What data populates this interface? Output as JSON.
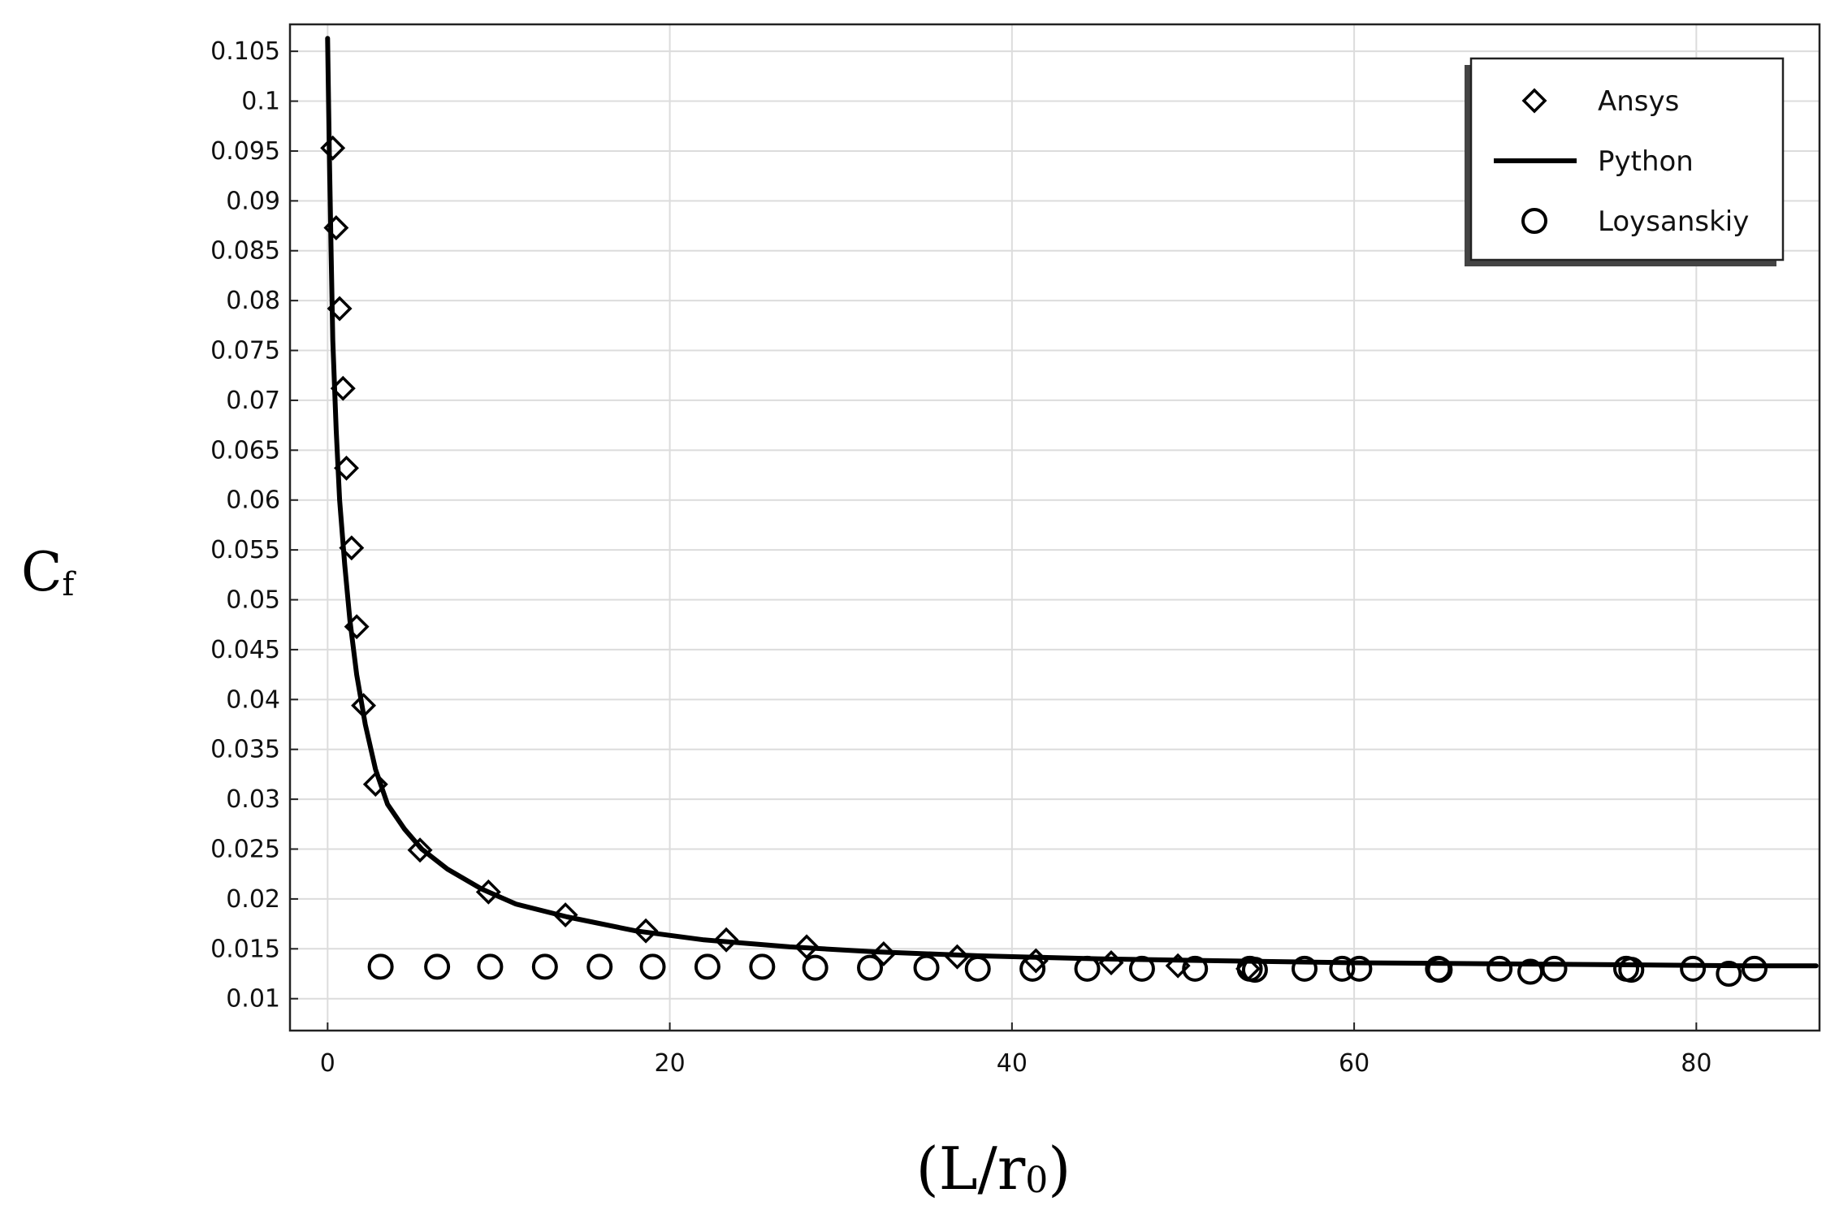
{
  "chart_data": {
    "type": "line",
    "xlabel": "(L/r",
    "xlabel_sub": "0",
    "xlabel_close": ")",
    "ylabel": "C",
    "ylabel_sub": "f",
    "xlim": [
      -2.2,
      87.2
    ],
    "ylim": [
      0.0068,
      0.1077
    ],
    "x_ticks": [
      0,
      20,
      40,
      60,
      80
    ],
    "x_tick_labels": [
      "0",
      "20",
      "40",
      "60",
      "80"
    ],
    "y_ticks": [
      0.01,
      0.015,
      0.02,
      0.025,
      0.03,
      0.035,
      0.04,
      0.045,
      0.05,
      0.055,
      0.06,
      0.065,
      0.07,
      0.075,
      0.08,
      0.085,
      0.09,
      0.095,
      0.1,
      0.105
    ],
    "y_tick_labels": [
      "0.01",
      "0.015",
      "0.02",
      "0.025",
      "0.03",
      "0.035",
      "0.04",
      "0.045",
      "0.05",
      "0.055",
      "0.06",
      "0.065",
      "0.07",
      "0.075",
      "0.08",
      "0.085",
      "0.09",
      "0.095",
      "0.1",
      "0.105"
    ],
    "grid": true,
    "legend_position": "top-right",
    "series": [
      {
        "name": "Ansys",
        "marker": "diamond",
        "color": "#000000",
        "x": [
          0.3,
          0.5,
          0.7,
          0.9,
          1.1,
          1.4,
          1.7,
          2.1,
          2.8,
          5.4,
          9.4,
          13.9,
          18.6,
          23.3,
          28.0,
          32.5,
          36.8,
          41.4,
          45.8,
          49.7,
          53.8
        ],
        "y": [
          0.0953,
          0.0873,
          0.0792,
          0.0712,
          0.0632,
          0.0552,
          0.0473,
          0.0394,
          0.0315,
          0.0249,
          0.0207,
          0.0184,
          0.0168,
          0.0159,
          0.0152,
          0.0145,
          0.0142,
          0.0138,
          0.0136,
          0.0133,
          0.013
        ]
      },
      {
        "name": "Python",
        "marker": "line",
        "color": "#000000",
        "x": [
          0.0,
          0.1,
          0.2,
          0.3,
          0.5,
          0.7,
          1.0,
          1.3,
          1.7,
          2.2,
          2.8,
          3.5,
          4.5,
          5.5,
          7.0,
          9.0,
          11.0,
          14.0,
          18.0,
          22.0,
          27.0,
          32.0,
          38.0,
          45.0,
          52.0,
          60.0,
          68.0,
          76.0,
          83.0,
          87.0
        ],
        "y": [
          0.1063,
          0.095,
          0.085,
          0.076,
          0.067,
          0.06,
          0.0535,
          0.048,
          0.0425,
          0.0375,
          0.033,
          0.0295,
          0.027,
          0.025,
          0.023,
          0.021,
          0.0195,
          0.0182,
          0.0168,
          0.0159,
          0.0152,
          0.0147,
          0.0143,
          0.014,
          0.0138,
          0.0136,
          0.0135,
          0.0134,
          0.0133,
          0.0133
        ]
      },
      {
        "name": "Loysanskiy",
        "marker": "circle",
        "color": "#000000",
        "x": [
          3.1,
          6.4,
          9.5,
          12.7,
          15.9,
          19.0,
          22.2,
          25.4,
          28.5,
          31.7,
          35.0,
          38.0,
          41.2,
          44.4,
          47.6,
          50.7,
          53.9,
          57.1,
          60.3,
          64.9,
          68.5,
          71.7,
          75.9,
          79.8,
          83.4,
          54.2,
          59.3,
          65.0,
          70.3,
          76.2,
          81.9
        ],
        "y": [
          0.0132,
          0.0132,
          0.0132,
          0.0132,
          0.0132,
          0.0132,
          0.0132,
          0.0132,
          0.0131,
          0.0131,
          0.0131,
          0.013,
          0.013,
          0.013,
          0.013,
          0.013,
          0.013,
          0.013,
          0.013,
          0.013,
          0.013,
          0.013,
          0.013,
          0.013,
          0.013,
          0.0129,
          0.013,
          0.0129,
          0.0127,
          0.0129,
          0.0125
        ]
      }
    ]
  }
}
